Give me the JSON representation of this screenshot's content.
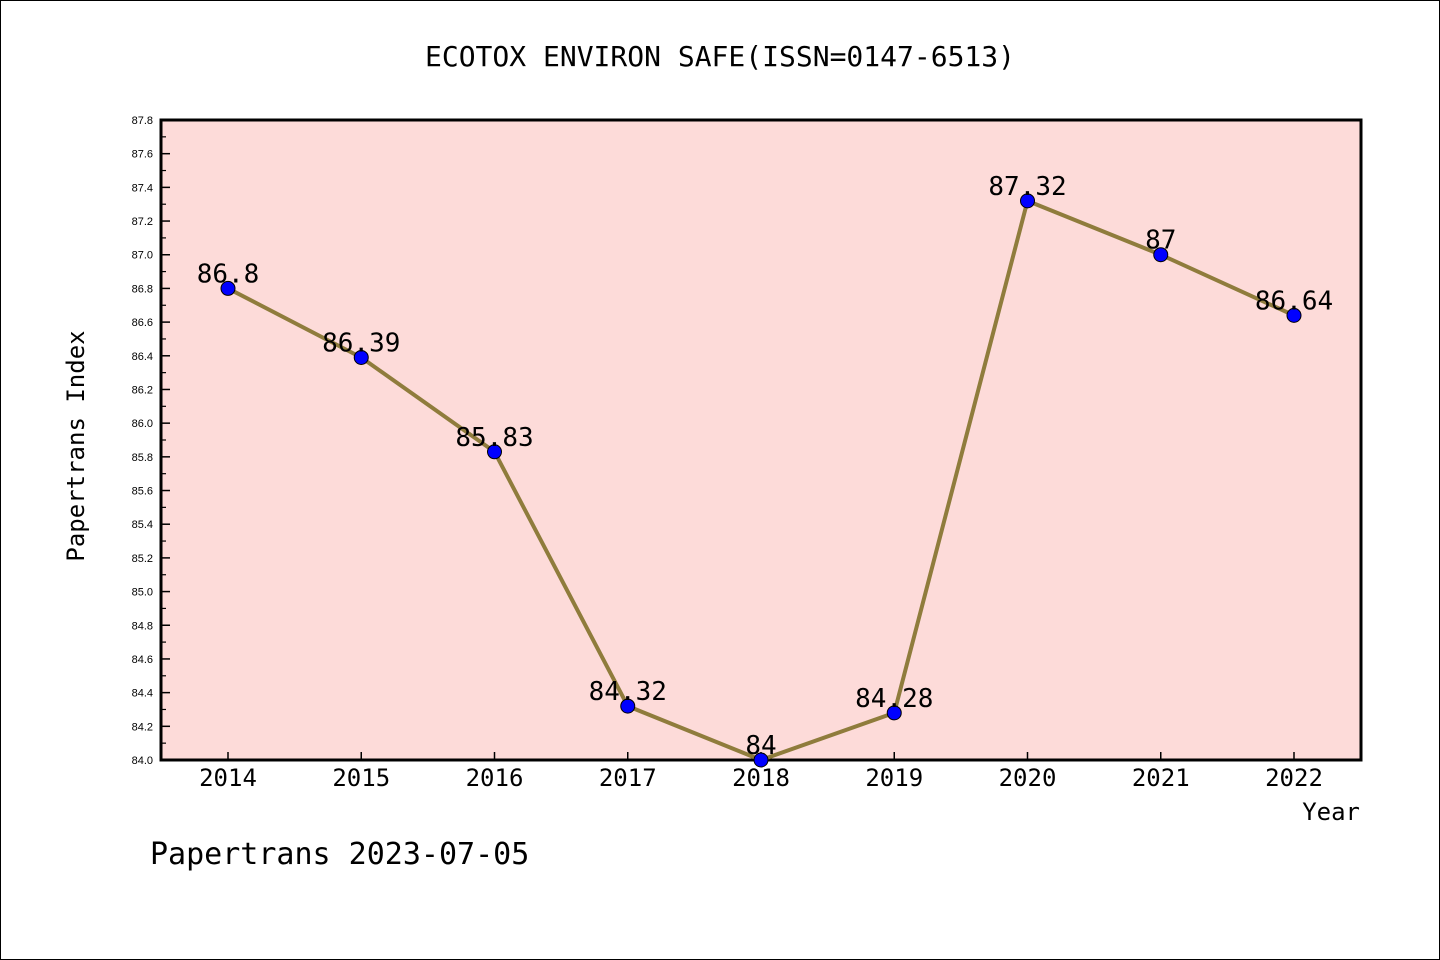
{
  "chart_data": {
    "type": "line",
    "title": "ECOTOX ENVIRON SAFE(ISSN=0147-6513)",
    "xlabel": "Year",
    "ylabel": "Papertrans Index",
    "footer": "Papertrans 2023-07-05",
    "categories": [
      "2014",
      "2015",
      "2016",
      "2017",
      "2018",
      "2019",
      "2020",
      "2021",
      "2022"
    ],
    "values": [
      86.8,
      86.39,
      85.83,
      84.32,
      84.0,
      84.28,
      87.32,
      87.0,
      86.64
    ],
    "data_labels": [
      "86.8",
      "86.39",
      "85.83",
      "84.32",
      "84",
      "84.28",
      "87.32",
      "87",
      "86.64"
    ],
    "ylim": [
      84.0,
      87.8
    ],
    "yticks": [
      "84.0",
      "84.2",
      "84.4",
      "84.6",
      "84.8",
      "85.0",
      "85.2",
      "85.4",
      "85.6",
      "85.8",
      "86.0",
      "86.2",
      "86.4",
      "86.6",
      "86.8",
      "87.0",
      "87.2",
      "87.4",
      "87.6",
      "87.8"
    ],
    "grid": false,
    "colors": {
      "plot_background": "#fddbd9",
      "line": "#8f7c3c",
      "marker": "#0000ff"
    }
  }
}
